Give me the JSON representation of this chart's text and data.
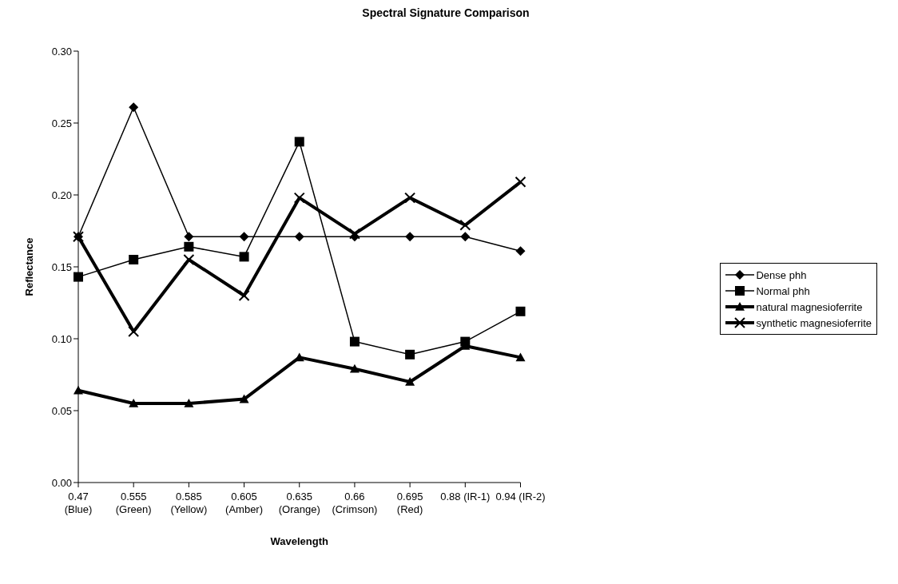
{
  "chart_data": {
    "type": "line",
    "title": "Spectral Signature Comparison",
    "xlabel": "Wavelength",
    "ylabel": "Reflectance",
    "categories": [
      "0.47\n(Blue)",
      "0.555\n(Green)",
      "0.585\n(Yellow)",
      "0.605\n(Amber)",
      "0.635\n(Orange)",
      "0.66\n(Crimson)",
      "0.695\n(Red)",
      "0.88 (IR-1)",
      "0.94 (IR-2)"
    ],
    "series": [
      {
        "name": "Dense phh",
        "color": "#000000",
        "marker": "diamond",
        "values": [
          0.171,
          0.261,
          0.171,
          0.171,
          0.171,
          0.171,
          0.171,
          0.171,
          0.161
        ]
      },
      {
        "name": "Normal phh",
        "color": "#000000",
        "marker": "square",
        "values": [
          0.143,
          0.155,
          0.164,
          0.157,
          0.237,
          0.098,
          0.089,
          0.098,
          0.119
        ]
      },
      {
        "name": "natural magnesioferrite",
        "color": "#000000",
        "marker": "triangle",
        "values": [
          0.064,
          0.055,
          0.055,
          0.058,
          0.087,
          0.079,
          0.07,
          0.095,
          0.087
        ]
      },
      {
        "name": "synthetic magnesioferrite",
        "color": "#000000",
        "marker": "cross",
        "values": [
          0.171,
          0.105,
          0.155,
          0.13,
          0.198,
          0.173,
          0.198,
          0.179,
          0.209
        ]
      }
    ],
    "ylim": [
      0,
      0.3
    ],
    "yticks": [
      {
        "value": 0,
        "label": "0.00"
      },
      {
        "value": 0.05,
        "label": "0.05"
      },
      {
        "value": 0.1,
        "label": "0.10"
      },
      {
        "value": 0.15,
        "label": "0.15"
      },
      {
        "value": 0.2,
        "label": "0.20"
      },
      {
        "value": 0.25,
        "label": "0.25"
      },
      {
        "value": 0.3,
        "label": "0.30"
      }
    ],
    "grid": false,
    "legend": "right",
    "line_style": "solid"
  }
}
